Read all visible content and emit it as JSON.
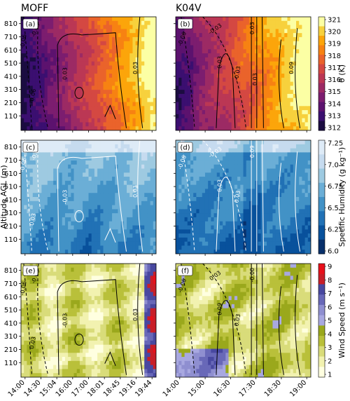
{
  "chart_data": {
    "type": "heatmap",
    "columns": [
      {
        "title": "MOFF",
        "x_ticks": [
          "14:00",
          "14:30",
          "15:04",
          "16:00",
          "17:00",
          "18:01",
          "18:45",
          "19:16",
          "19:44"
        ]
      },
      {
        "title": "K04V",
        "x_ticks": [
          "14:00",
          "15:00",
          "16:30",
          "17:30",
          "18:30",
          "19:00"
        ]
      }
    ],
    "ylabel": "Altitude AGL (m)",
    "y_ticks": [
      "810",
      "710",
      "610",
      "510",
      "410",
      "310",
      "210",
      "110"
    ],
    "rows": [
      {
        "variable": "theta",
        "colorbar_label": "θ (K)",
        "colorbar_ticks": [
          "321",
          "320",
          "319",
          "318",
          "317",
          "316",
          "315",
          "314",
          "313",
          "312"
        ],
        "colors": [
          "#1b0c41",
          "#3b0f70",
          "#5c126e",
          "#7c1d6f",
          "#9c2a64",
          "#bb3754",
          "#d44842",
          "#ea632b",
          "#f78212",
          "#fca50a",
          "#f7d13d",
          "#fcffa4"
        ],
        "panels": [
          {
            "label": "(a)",
            "contour_labels": [
              "-0.06",
              "-0.03",
              "0.03",
              "-0.06",
              "0.03"
            ]
          },
          {
            "label": "(b)",
            "contour_labels": [
              "-0.06",
              "-0.03",
              "-0.03",
              "0.03",
              "0.03",
              "0.03",
              "0.09"
            ]
          }
        ]
      },
      {
        "variable": "specific_humidity",
        "colorbar_label": "Specific Humidity (g kg⁻¹)",
        "colorbar_ticks": [
          "7.25",
          "7.0",
          "6.75",
          "6.5",
          "6.25",
          "6.0"
        ],
        "colors": [
          "#08306b",
          "#08519c",
          "#2171b5",
          "#4292c6",
          "#6baed6",
          "#9ecae1",
          "#c6dbef",
          "#deebf7"
        ],
        "panels": [
          {
            "label": "(c)",
            "contour_labels": [
              "-0.06",
              "-0.03",
              "-0.03",
              "0.03",
              "0.03"
            ]
          },
          {
            "label": "(d)",
            "contour_labels": [
              "-0.06",
              "-0.03",
              "0.03",
              "0.03",
              "0.09"
            ]
          }
        ]
      },
      {
        "variable": "wind_speed",
        "colorbar_label": "Wind Speed (m s⁻¹)",
        "colorbar_ticks": [
          "9",
          "8",
          "7",
          "6",
          "5",
          "4",
          "3",
          "2",
          "1"
        ],
        "colors": [
          "#ffffe0",
          "#f2f2b0",
          "#d9dc7a",
          "#b9c03a",
          "#9aa81c",
          "#a8a8e0",
          "#8f8fd0",
          "#6868b8",
          "#4848a0",
          "#c81e28",
          "#e8101a"
        ],
        "panels": [
          {
            "label": "(e)",
            "contour_labels": [
              "-0.06",
              "-0.00",
              "-0.03",
              "0.03",
              "0.03"
            ]
          },
          {
            "label": "(f)",
            "contour_labels": [
              "-0.06",
              "0.03",
              "0.03",
              "0.09",
              "-0.00"
            ]
          }
        ]
      }
    ]
  }
}
